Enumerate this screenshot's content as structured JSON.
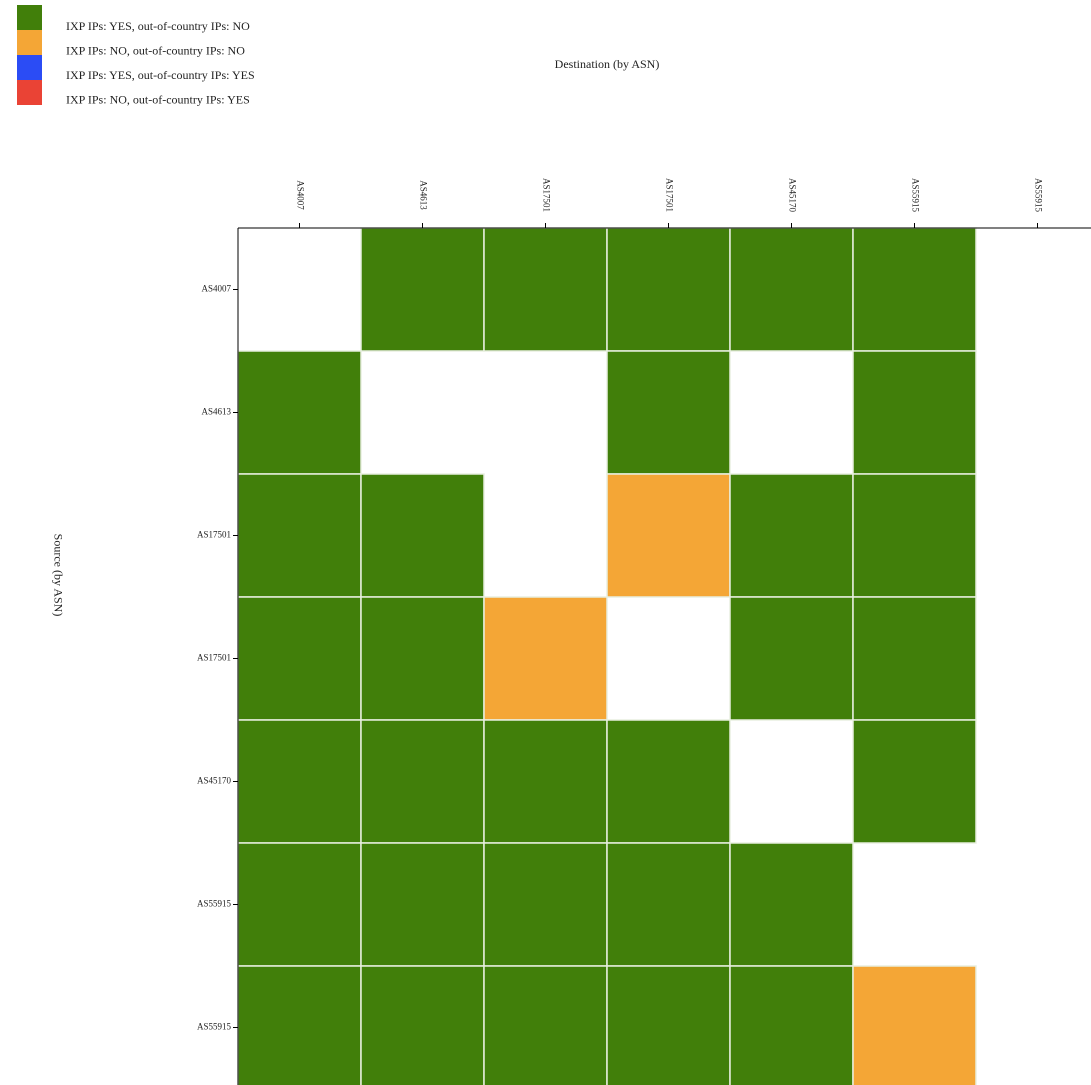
{
  "chart_data": {
    "type": "heatmap",
    "title": "Destination (by ASN)",
    "y_label": "Source (by ASN)",
    "legend": [
      {
        "label": "IXP IPs: YES, out-of-country IPs: NO",
        "color": "#417f0a"
      },
      {
        "label": "IXP IPs: NO, out-of-country IPs: NO",
        "color": "#f4a636"
      },
      {
        "label": "IXP IPs: YES, out-of-country IPs: YES",
        "color": "#2b4cf5"
      },
      {
        "label": "IXP IPs: NO, out-of-country IPs: YES",
        "color": "#ea4335"
      }
    ],
    "x_categories": [
      "AS4007",
      "AS4613",
      "AS17501",
      "AS17501",
      "AS45170",
      "AS55915",
      "AS55915"
    ],
    "y_categories": [
      "AS4007",
      "AS4613",
      "AS17501",
      "AS17501",
      "AS45170",
      "AS55915",
      "AS55915"
    ],
    "values": [
      [
        null,
        0,
        0,
        0,
        0,
        0,
        null
      ],
      [
        0,
        null,
        null,
        0,
        null,
        0,
        null
      ],
      [
        0,
        0,
        null,
        1,
        0,
        0,
        null
      ],
      [
        0,
        0,
        1,
        null,
        0,
        0,
        null
      ],
      [
        0,
        0,
        0,
        0,
        null,
        0,
        null
      ],
      [
        0,
        0,
        0,
        0,
        0,
        null,
        null
      ],
      [
        0,
        0,
        0,
        0,
        0,
        1,
        null
      ]
    ]
  }
}
